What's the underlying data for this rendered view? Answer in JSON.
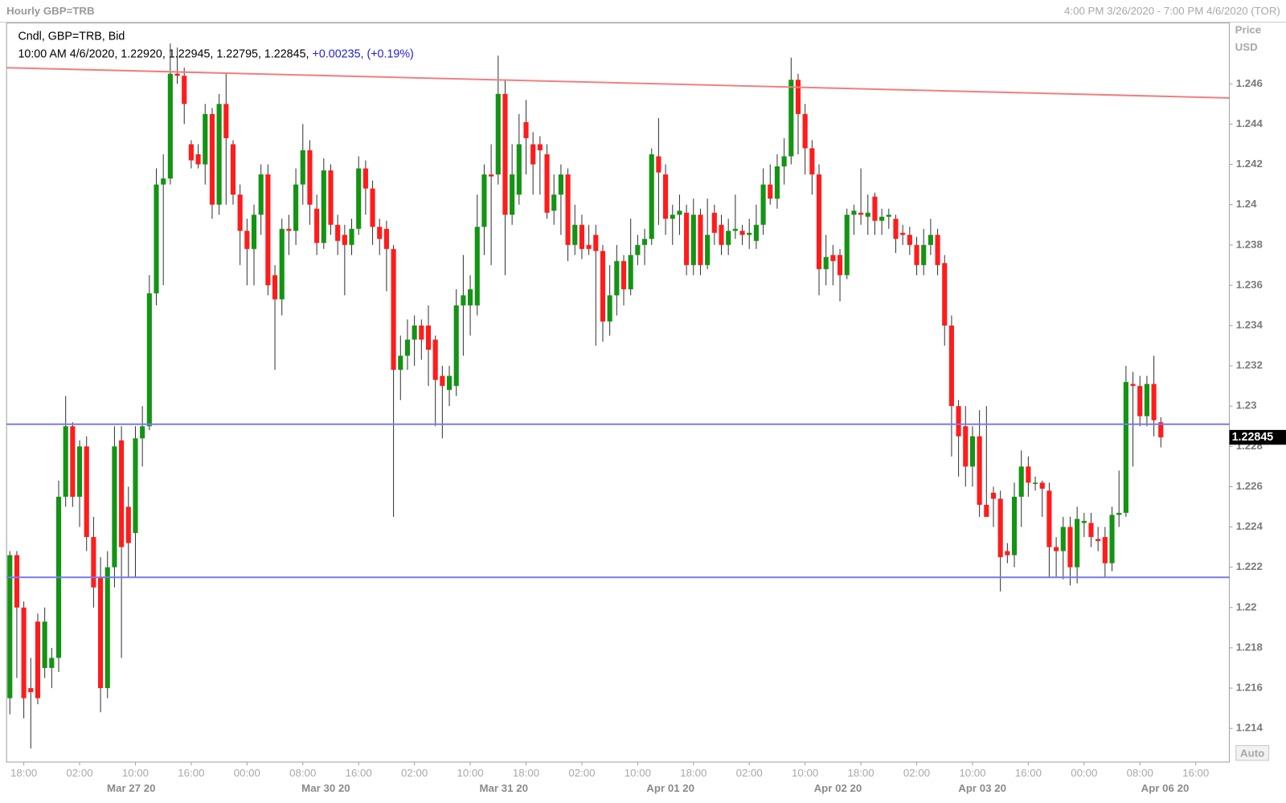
{
  "chart_data": {
    "type": "candlestick",
    "title": "Hourly GBP=TRB",
    "range_label": "4:00 PM 3/26/2020 - 7:00 PM 4/6/2020 (TOR)",
    "axis_label": [
      "Price",
      "USD"
    ],
    "legend_name": "Cndl, GBP=TRB, Bid",
    "legend_values": "10:00 AM 4/6/2020, 1.22920, 1.22945, 1.22795, 1.22845,",
    "legend_change": "+0.00235, (+0.19%)",
    "last_label": "1.22845",
    "auto_button": "Auto",
    "up_color": "#149414",
    "down_color": "#ff1c1c",
    "ylim": [
      1.21233,
      1.24902
    ],
    "yticks": [
      1.214,
      1.216,
      1.218,
      1.22,
      1.222,
      1.224,
      1.226,
      1.228,
      1.23,
      1.232,
      1.234,
      1.236,
      1.238,
      1.24,
      1.242,
      1.244,
      1.246
    ],
    "xticks": [
      {
        "value": 2,
        "label": "18:00"
      },
      {
        "value": 10,
        "label": "02:00"
      },
      {
        "value": 18,
        "label": "10:00"
      },
      {
        "value": 26,
        "label": "16:00"
      },
      {
        "value": 34,
        "label": "00:00"
      },
      {
        "value": 42,
        "label": "08:00"
      },
      {
        "value": 50,
        "label": "16:00"
      },
      {
        "value": 58,
        "label": "02:00"
      },
      {
        "value": 66,
        "label": "10:00"
      },
      {
        "value": 74,
        "label": "18:00"
      },
      {
        "value": 82,
        "label": "02:00"
      },
      {
        "value": 90,
        "label": "10:00"
      },
      {
        "value": 98,
        "label": "18:00"
      },
      {
        "value": 106,
        "label": "02:00"
      },
      {
        "value": 114,
        "label": "10:00"
      },
      {
        "value": 122,
        "label": "18:00"
      },
      {
        "value": 130,
        "label": "02:00"
      },
      {
        "value": 138,
        "label": "10:00"
      },
      {
        "value": 146,
        "label": "16:00"
      },
      {
        "value": 154,
        "label": "00:00"
      },
      {
        "value": 162,
        "label": "08:00"
      },
      {
        "value": 170,
        "label": "16:00"
      }
    ],
    "date_labels": [
      {
        "value": 17.4,
        "label": "Mar 27 20"
      },
      {
        "value": 45.3,
        "label": "Mar 30 20"
      },
      {
        "value": 70.8,
        "label": "Mar 31 20"
      },
      {
        "value": 94.7,
        "label": "Apr 01 20"
      },
      {
        "value": 118.7,
        "label": "Apr 02 20"
      },
      {
        "value": 139.4,
        "label": "Apr 03 20"
      },
      {
        "value": 165.6,
        "label": "Apr 06 20"
      }
    ],
    "trendline": {
      "start": 1.2468,
      "end": 1.2453,
      "color": "#f08080"
    },
    "hlines": [
      {
        "value": 1.2291,
        "color": "#7878f0"
      },
      {
        "value": 1.2215,
        "color": "#7878f0"
      }
    ],
    "ohlc": [
      [
        1.2155,
        1.2228,
        1.2147,
        1.2226
      ],
      [
        1.2226,
        1.2228,
        1.2165,
        1.22
      ],
      [
        1.22,
        1.2203,
        1.2145,
        1.2155
      ],
      [
        1.216,
        1.2175,
        1.213,
        1.2158
      ],
      [
        1.2193,
        1.2197,
        1.2152,
        1.2155
      ],
      [
        1.217,
        1.22,
        1.2165,
        1.2193
      ],
      [
        1.217,
        1.218,
        1.216,
        1.2175
      ],
      [
        1.2175,
        1.2263,
        1.2168,
        1.2255
      ],
      [
        1.2255,
        1.2305,
        1.225,
        1.229
      ],
      [
        1.229,
        1.2292,
        1.225,
        1.2255
      ],
      [
        1.2255,
        1.2283,
        1.224,
        1.228
      ],
      [
        1.228,
        1.2285,
        1.2228,
        1.2235
      ],
      [
        1.2235,
        1.2245,
        1.22,
        1.221
      ],
      [
        1.2215,
        1.2225,
        1.2148,
        1.216
      ],
      [
        1.216,
        1.2228,
        1.2155,
        1.222
      ],
      [
        1.222,
        1.229,
        1.221,
        1.228
      ],
      [
        1.2283,
        1.229,
        1.2175,
        1.223
      ],
      [
        1.225,
        1.226,
        1.2215,
        1.2232
      ],
      [
        1.2237,
        1.229,
        1.2215,
        1.2284
      ],
      [
        1.2284,
        1.23,
        1.227,
        1.229
      ],
      [
        1.229,
        1.2365,
        1.2288,
        1.2356
      ],
      [
        1.2356,
        1.2418,
        1.235,
        1.241
      ],
      [
        1.241,
        1.2425,
        1.236,
        1.2413
      ],
      [
        1.2413,
        1.248,
        1.241,
        1.2465
      ],
      [
        1.2465,
        1.2478,
        1.246,
        1.2464
      ],
      [
        1.2464,
        1.2468,
        1.244,
        1.245
      ],
      [
        1.243,
        1.2432,
        1.2418,
        1.2422
      ],
      [
        1.2425,
        1.243,
        1.2418,
        1.242
      ],
      [
        1.242,
        1.245,
        1.241,
        1.2445
      ],
      [
        1.2445,
        1.2448,
        1.2393,
        1.24
      ],
      [
        1.24,
        1.2455,
        1.2395,
        1.245
      ],
      [
        1.245,
        1.2465,
        1.24,
        1.2433
      ],
      [
        1.243,
        1.2432,
        1.24,
        1.2405
      ],
      [
        1.2405,
        1.241,
        1.237,
        1.2387
      ],
      [
        1.2387,
        1.2393,
        1.236,
        1.2378
      ],
      [
        1.2378,
        1.24,
        1.236,
        1.2395
      ],
      [
        1.2395,
        1.242,
        1.2385,
        1.2415
      ],
      [
        1.2415,
        1.242,
        1.2355,
        1.236
      ],
      [
        1.2365,
        1.237,
        1.2318,
        1.2353
      ],
      [
        1.2353,
        1.2393,
        1.2345,
        1.2388
      ],
      [
        1.2388,
        1.2395,
        1.2375,
        1.2387
      ],
      [
        1.2387,
        1.2418,
        1.238,
        1.241
      ],
      [
        1.241,
        1.244,
        1.24,
        1.2427
      ],
      [
        1.2427,
        1.2432,
        1.239,
        1.24
      ],
      [
        1.2398,
        1.2405,
        1.2375,
        1.2381
      ],
      [
        1.2381,
        1.2423,
        1.2378,
        1.2417
      ],
      [
        1.2417,
        1.242,
        1.2385,
        1.239
      ],
      [
        1.239,
        1.2395,
        1.2375,
        1.2382
      ],
      [
        1.2385,
        1.239,
        1.2355,
        1.238
      ],
      [
        1.238,
        1.2393,
        1.2375,
        1.2388
      ],
      [
        1.2388,
        1.2424,
        1.2385,
        1.2418
      ],
      [
        1.2418,
        1.2422,
        1.2395,
        1.2408
      ],
      [
        1.2408,
        1.2412,
        1.238,
        1.2389
      ],
      [
        1.2389,
        1.2393,
        1.2375,
        1.2383
      ],
      [
        1.2388,
        1.2392,
        1.2357,
        1.2378
      ],
      [
        1.2378,
        1.238,
        1.2245,
        1.2318
      ],
      [
        1.2318,
        1.2335,
        1.2303,
        1.2325
      ],
      [
        1.2325,
        1.2343,
        1.2318,
        1.2333
      ],
      [
        1.2333,
        1.2345,
        1.232,
        1.234
      ],
      [
        1.234,
        1.2343,
        1.2323,
        1.2333
      ],
      [
        1.234,
        1.235,
        1.231,
        1.2328
      ],
      [
        1.2333,
        1.2335,
        1.229,
        1.2313
      ],
      [
        1.2315,
        1.232,
        1.2284,
        1.231
      ],
      [
        1.2308,
        1.232,
        1.23,
        1.2315
      ],
      [
        1.231,
        1.2358,
        1.2305,
        1.235
      ],
      [
        1.235,
        1.2375,
        1.2325,
        1.2355
      ],
      [
        1.235,
        1.2365,
        1.2335,
        1.2358
      ],
      [
        1.235,
        1.2405,
        1.2345,
        1.2389
      ],
      [
        1.2389,
        1.242,
        1.2375,
        1.2415
      ],
      [
        1.2415,
        1.243,
        1.237,
        1.2414
      ],
      [
        1.2415,
        1.2474,
        1.241,
        1.2455
      ],
      [
        1.2455,
        1.2462,
        1.2365,
        1.2395
      ],
      [
        1.2395,
        1.243,
        1.239,
        1.2415
      ],
      [
        1.2405,
        1.2445,
        1.24,
        1.243
      ],
      [
        1.2441,
        1.2452,
        1.2415,
        1.2433
      ],
      [
        1.243,
        1.2436,
        1.2405,
        1.242
      ],
      [
        1.243,
        1.2434,
        1.2405,
        1.2427
      ],
      [
        1.2425,
        1.243,
        1.2393,
        1.2396
      ],
      [
        1.2397,
        1.2415,
        1.239,
        1.2405
      ],
      [
        1.2405,
        1.242,
        1.2385,
        1.2415
      ],
      [
        1.2415,
        1.2418,
        1.2372,
        1.238
      ],
      [
        1.238,
        1.24,
        1.2375,
        1.239
      ],
      [
        1.239,
        1.2395,
        1.2373,
        1.2378
      ],
      [
        1.238,
        1.239,
        1.2375,
        1.2378
      ],
      [
        1.2385,
        1.239,
        1.233,
        1.2377
      ],
      [
        1.2377,
        1.238,
        1.2332,
        1.2342
      ],
      [
        1.2342,
        1.237,
        1.2335,
        1.2355
      ],
      [
        1.2355,
        1.238,
        1.2345,
        1.2372
      ],
      [
        1.2372,
        1.2375,
        1.235,
        1.2358
      ],
      [
        1.2358,
        1.2393,
        1.2355,
        1.2375
      ],
      [
        1.2375,
        1.2385,
        1.237,
        1.238
      ],
      [
        1.238,
        1.2388,
        1.237,
        1.2383
      ],
      [
        1.2383,
        1.2428,
        1.238,
        1.2425
      ],
      [
        1.2424,
        1.2443,
        1.239,
        1.2416
      ],
      [
        1.2415,
        1.242,
        1.2385,
        1.2393
      ],
      [
        1.2393,
        1.24,
        1.238,
        1.2395
      ],
      [
        1.2395,
        1.2405,
        1.2385,
        1.2397
      ],
      [
        1.2396,
        1.24,
        1.2365,
        1.237
      ],
      [
        1.237,
        1.2403,
        1.2365,
        1.2395
      ],
      [
        1.2395,
        1.2398,
        1.2365,
        1.237
      ],
      [
        1.237,
        1.2403,
        1.2368,
        1.2385
      ],
      [
        1.2396,
        1.24,
        1.238,
        1.2386
      ],
      [
        1.239,
        1.2395,
        1.2375,
        1.238
      ],
      [
        1.238,
        1.2393,
        1.2375,
        1.2387
      ],
      [
        1.2387,
        1.2405,
        1.2383,
        1.2388
      ],
      [
        1.2387,
        1.239,
        1.238,
        1.2385
      ],
      [
        1.2385,
        1.2393,
        1.2378,
        1.2386
      ],
      [
        1.2382,
        1.24,
        1.2378,
        1.239
      ],
      [
        1.239,
        1.2418,
        1.2385,
        1.241
      ],
      [
        1.241,
        1.242,
        1.24,
        1.2403
      ],
      [
        1.2403,
        1.2425,
        1.2398,
        1.2419
      ],
      [
        1.2419,
        1.2433,
        1.241,
        1.2424
      ],
      [
        1.2424,
        1.2473,
        1.242,
        1.2462
      ],
      [
        1.2462,
        1.2465,
        1.2425,
        1.2445
      ],
      [
        1.2445,
        1.245,
        1.2415,
        1.2428
      ],
      [
        1.2428,
        1.2432,
        1.2405,
        1.2415
      ],
      [
        1.2415,
        1.242,
        1.2355,
        1.2368
      ],
      [
        1.2368,
        1.2385,
        1.236,
        1.2374
      ],
      [
        1.2375,
        1.238,
        1.236,
        1.2372
      ],
      [
        1.2375,
        1.2378,
        1.2352,
        1.2365
      ],
      [
        1.2365,
        1.2398,
        1.2363,
        1.2395
      ],
      [
        1.2395,
        1.24,
        1.2385,
        1.2397
      ],
      [
        1.2396,
        1.2418,
        1.239,
        1.2395
      ],
      [
        1.2394,
        1.2405,
        1.2385,
        1.2396
      ],
      [
        1.2404,
        1.2406,
        1.2385,
        1.2392
      ],
      [
        1.2392,
        1.2398,
        1.2385,
        1.2394
      ],
      [
        1.2394,
        1.2398,
        1.2388,
        1.2395
      ],
      [
        1.2393,
        1.2395,
        1.2376,
        1.2383
      ],
      [
        1.2386,
        1.239,
        1.238,
        1.2385
      ],
      [
        1.2385,
        1.2389,
        1.2375,
        1.238
      ],
      [
        1.238,
        1.2384,
        1.2365,
        1.237
      ],
      [
        1.237,
        1.2388,
        1.2365,
        1.238
      ],
      [
        1.238,
        1.2393,
        1.2375,
        1.2385
      ],
      [
        1.2385,
        1.2388,
        1.2365,
        1.237
      ],
      [
        1.2371,
        1.2375,
        1.233,
        1.234
      ],
      [
        1.234,
        1.2345,
        1.2275,
        1.23
      ],
      [
        1.23,
        1.2303,
        1.2265,
        1.2285
      ],
      [
        1.229,
        1.23,
        1.226,
        1.227
      ],
      [
        1.227,
        1.229,
        1.226,
        1.2285
      ],
      [
        1.2285,
        1.2298,
        1.2245,
        1.2251
      ],
      [
        1.2251,
        1.23,
        1.2245,
        1.2245
      ],
      [
        1.2257,
        1.226,
        1.224,
        1.2254
      ],
      [
        1.2254,
        1.2258,
        1.2208,
        1.2225
      ],
      [
        1.2228,
        1.2232,
        1.2222,
        1.2226
      ],
      [
        1.2226,
        1.2262,
        1.222,
        1.2255
      ],
      [
        1.2255,
        1.2278,
        1.224,
        1.227
      ],
      [
        1.227,
        1.2275,
        1.2255,
        1.2262
      ],
      [
        1.2262,
        1.2265,
        1.2258,
        1.2262
      ],
      [
        1.2262,
        1.2263,
        1.2245,
        1.2259
      ],
      [
        1.2258,
        1.2262,
        1.2215,
        1.223
      ],
      [
        1.223,
        1.2235,
        1.2215,
        1.2228
      ],
      [
        1.2228,
        1.2245,
        1.2214,
        1.224
      ],
      [
        1.224,
        1.2245,
        1.2211,
        1.222
      ],
      [
        1.222,
        1.225,
        1.2212,
        1.2244
      ],
      [
        1.2242,
        1.2247,
        1.2235,
        1.2243
      ],
      [
        1.2242,
        1.2247,
        1.223,
        1.2235
      ],
      [
        1.2234,
        1.224,
        1.2228,
        1.2233
      ],
      [
        1.2235,
        1.224,
        1.2215,
        1.2222
      ],
      [
        1.2222,
        1.225,
        1.2218,
        1.2246
      ],
      [
        1.2246,
        1.2268,
        1.224,
        1.2247
      ],
      [
        1.2247,
        1.232,
        1.2245,
        1.2312
      ],
      [
        1.2311,
        1.2317,
        1.227,
        1.231
      ],
      [
        1.231,
        1.2315,
        1.229,
        1.2295
      ],
      [
        1.2295,
        1.2315,
        1.229,
        1.2311
      ],
      [
        1.2311,
        1.2325,
        1.2285,
        1.2293
      ],
      [
        1.2292,
        1.22945,
        1.22795,
        1.22845
      ]
    ]
  }
}
